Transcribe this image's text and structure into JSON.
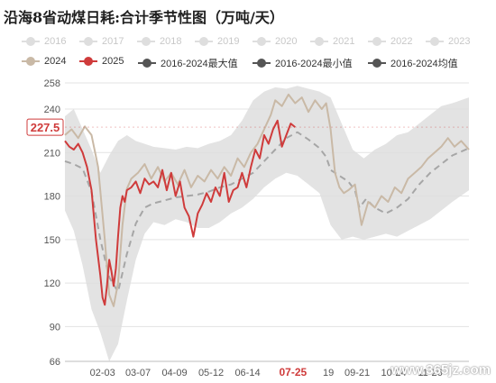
{
  "title": "沿海8省动煤日耗:合计季节性图（万吨/天）",
  "watermark": "www.365jz.com",
  "legend_row1": [
    {
      "label": "2016",
      "color": "#dedede"
    },
    {
      "label": "2017",
      "color": "#dedede"
    },
    {
      "label": "2018",
      "color": "#dedede"
    },
    {
      "label": "2019",
      "color": "#dedede"
    },
    {
      "label": "2020",
      "color": "#dedede"
    },
    {
      "label": "2021",
      "color": "#dedede"
    },
    {
      "label": "2022",
      "color": "#dedede"
    },
    {
      "label": "2023",
      "color": "#dedede"
    }
  ],
  "legend_row2": [
    {
      "label": "2024",
      "color": "#c9b9a6"
    },
    {
      "label": "2025",
      "color": "#cf3b3b"
    },
    {
      "label": "2016-2024最大值",
      "color": "#555555"
    },
    {
      "label": "2016-2024最小值",
      "color": "#555555"
    },
    {
      "label": "2016-2024均值",
      "color": "#555555"
    }
  ],
  "chart_data": {
    "type": "line",
    "title": "沿海8省动煤日耗:合计季节性图（万吨/天）",
    "ylim": [
      66,
      258
    ],
    "y_ticks": [
      66,
      90,
      120,
      150,
      180,
      210,
      240,
      258
    ],
    "x_range": [
      0,
      365
    ],
    "x_ticks": [
      {
        "label": "02-03",
        "day": 34
      },
      {
        "label": "03-07",
        "day": 66
      },
      {
        "label": "04-09",
        "day": 99
      },
      {
        "label": "05-12",
        "day": 132
      },
      {
        "label": "06-14",
        "day": 165
      },
      {
        "label": "07-25",
        "day": 206
      },
      {
        "label": "19",
        "day": 238
      },
      {
        "label": "09-21",
        "day": 264
      },
      {
        "label": "10-24",
        "day": 297
      },
      {
        "label": "11-26",
        "day": 330
      }
    ],
    "highlight_tick": "07-25",
    "last_value_label": "227.5",
    "last_value": 227.5,
    "band": {
      "name": "2016-2024最大值/最小值",
      "x": [
        0,
        8,
        16,
        24,
        32,
        40,
        48,
        56,
        64,
        72,
        80,
        90,
        100,
        110,
        120,
        130,
        140,
        150,
        160,
        170,
        180,
        190,
        200,
        210,
        220,
        230,
        240,
        250,
        260,
        270,
        280,
        290,
        300,
        310,
        320,
        330,
        340,
        350,
        365
      ],
      "max": [
        235,
        240,
        226,
        212,
        196,
        208,
        218,
        222,
        218,
        216,
        214,
        213,
        212,
        214,
        213,
        216,
        218,
        222,
        232,
        246,
        252,
        255,
        254,
        256,
        254,
        252,
        248,
        230,
        212,
        206,
        212,
        216,
        222,
        224,
        230,
        236,
        242,
        244,
        248
      ],
      "min": [
        170,
        156,
        132,
        102,
        86,
        66,
        78,
        108,
        136,
        154,
        162,
        160,
        164,
        162,
        158,
        158,
        162,
        168,
        172,
        178,
        186,
        192,
        196,
        194,
        188,
        182,
        160,
        150,
        152,
        150,
        152,
        154,
        152,
        156,
        160,
        164,
        170,
        176,
        184
      ]
    },
    "series": [
      {
        "name": "2016-2024均值",
        "style": "dashed",
        "color": "#a6a6a6",
        "x": [
          0,
          8,
          16,
          24,
          32,
          40,
          48,
          56,
          64,
          72,
          80,
          90,
          100,
          110,
          120,
          130,
          140,
          150,
          160,
          170,
          180,
          190,
          200,
          210,
          220,
          230,
          236,
          240,
          248,
          256,
          262,
          266,
          272,
          280,
          290,
          300,
          310,
          320,
          330,
          340,
          350,
          365
        ],
        "y": [
          204,
          202,
          199,
          183,
          150,
          124,
          114,
          140,
          161,
          172,
          175,
          177,
          179,
          180,
          181,
          183,
          186,
          188,
          192,
          196,
          204,
          212,
          220,
          224,
          219,
          213,
          207,
          198,
          194,
          190,
          184,
          172,
          178,
          172,
          168,
          172,
          178,
          188,
          196,
          202,
          208,
          213
        ]
      },
      {
        "name": "2024",
        "style": "solid",
        "color": "#c9b9a6",
        "x": [
          0,
          6,
          12,
          18,
          24,
          30,
          36,
          40,
          44,
          48,
          52,
          56,
          60,
          66,
          72,
          78,
          84,
          90,
          96,
          102,
          108,
          114,
          120,
          126,
          132,
          138,
          144,
          150,
          156,
          162,
          168,
          174,
          180,
          186,
          190,
          196,
          202,
          208,
          214,
          220,
          226,
          232,
          236,
          240,
          244,
          248,
          252,
          256,
          262,
          268,
          274,
          280,
          286,
          292,
          298,
          304,
          310,
          316,
          322,
          328,
          334,
          340,
          346,
          352,
          358,
          365
        ],
        "y": [
          222,
          226,
          220,
          228,
          222,
          200,
          150,
          112,
          104,
          120,
          160,
          185,
          192,
          196,
          202,
          192,
          200,
          190,
          196,
          188,
          198,
          186,
          194,
          190,
          198,
          192,
          200,
          194,
          206,
          200,
          210,
          216,
          226,
          236,
          246,
          242,
          250,
          244,
          248,
          238,
          246,
          240,
          244,
          226,
          196,
          186,
          182,
          184,
          188,
          160,
          176,
          172,
          180,
          176,
          186,
          182,
          192,
          196,
          200,
          206,
          210,
          214,
          220,
          214,
          218,
          212
        ]
      },
      {
        "name": "2025",
        "style": "solid",
        "color": "#cf3b3b",
        "x": [
          0,
          4,
          8,
          12,
          16,
          20,
          24,
          28,
          32,
          34,
          36,
          38,
          40,
          42,
          44,
          46,
          48,
          50,
          52,
          54,
          56,
          60,
          64,
          68,
          72,
          76,
          80,
          84,
          88,
          92,
          96,
          100,
          104,
          108,
          112,
          116,
          120,
          124,
          128,
          132,
          136,
          140,
          144,
          148,
          152,
          156,
          160,
          164,
          168,
          172,
          176,
          180,
          184,
          188,
          192,
          196,
          200,
          204,
          208
        ],
        "y": [
          218,
          214,
          212,
          216,
          210,
          200,
          184,
          150,
          125,
          110,
          105,
          118,
          136,
          128,
          118,
          130,
          152,
          172,
          180,
          176,
          184,
          186,
          190,
          182,
          192,
          188,
          190,
          186,
          198,
          184,
          196,
          180,
          190,
          172,
          166,
          152,
          168,
          174,
          182,
          176,
          186,
          180,
          196,
          176,
          184,
          186,
          196,
          186,
          200,
          212,
          206,
          222,
          216,
          226,
          232,
          214,
          222,
          230,
          227.5
        ]
      }
    ]
  }
}
